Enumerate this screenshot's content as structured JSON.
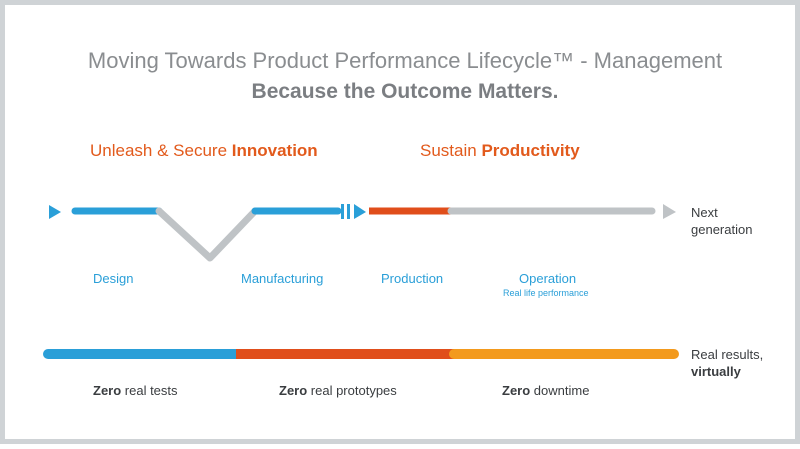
{
  "title": "Moving Towards Product Performance Lifecycle™ - Management",
  "subtitle": "Because the Outcome Matters.",
  "phases": [
    {
      "prefix": "Unleash & Secure ",
      "emphasis": "Innovation"
    },
    {
      "prefix": "Sustain ",
      "emphasis": "Productivity"
    }
  ],
  "stages": {
    "design": "Design",
    "manufacturing": "Manufacturing",
    "production": "Production",
    "operation": "Operation",
    "operation_sub": "Real life performance"
  },
  "next_generation": {
    "line1": "Next",
    "line2": "generation"
  },
  "real_results": {
    "line1": "Real results,",
    "line2": "virtually"
  },
  "zeros": [
    {
      "bold": "Zero",
      "rest": " real tests"
    },
    {
      "bold": "Zero",
      "rest": " real prototypes"
    },
    {
      "bold": "Zero",
      "rest": " downtime"
    }
  ],
  "colors": {
    "blue": "#2a9fd8",
    "orange_red": "#e04e1b",
    "orange": "#f39a1d",
    "gray": "#bfc3c6"
  }
}
